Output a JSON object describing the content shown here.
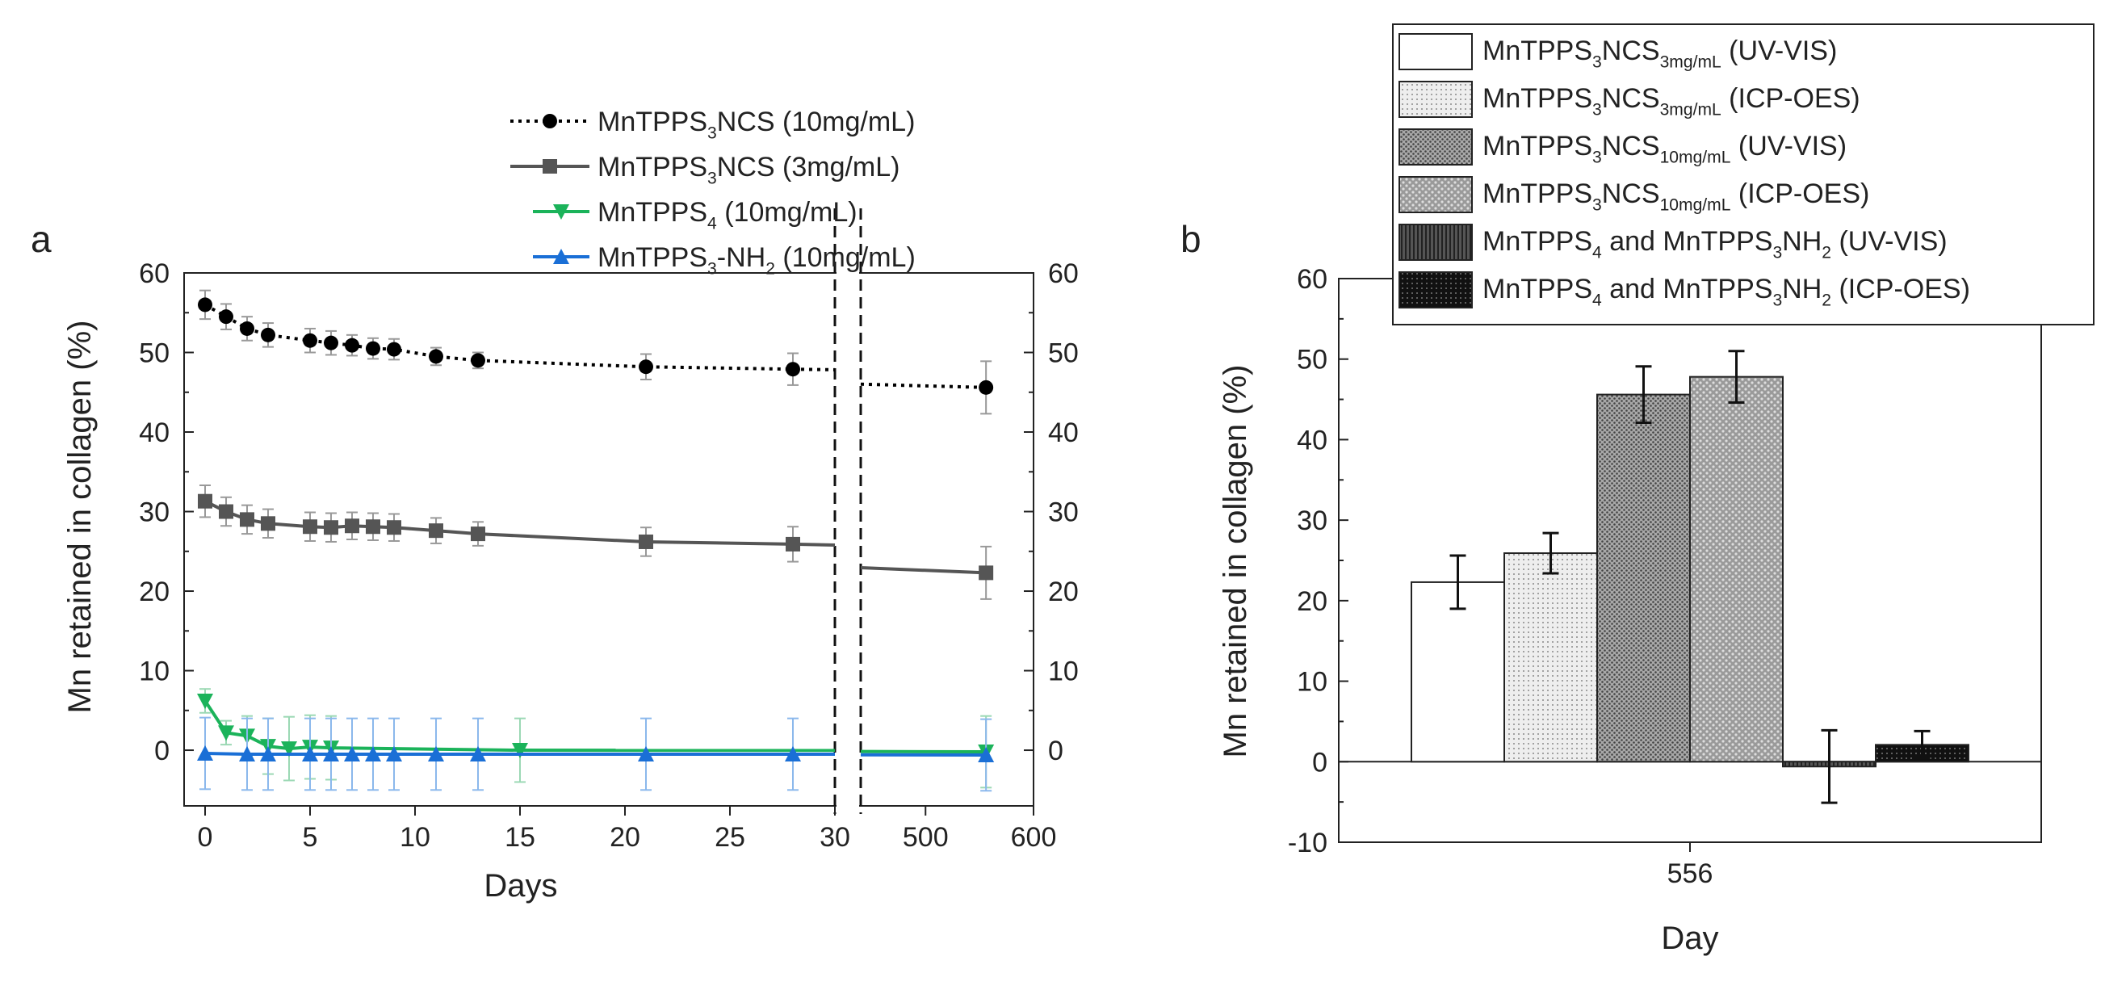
{
  "panels": {
    "a": {
      "label": "a"
    },
    "b": {
      "label": "b"
    }
  },
  "chart_data": [
    {
      "panel": "a",
      "type": "line",
      "xlabel": "Days",
      "ylabel": "Mn retained in collagen (%)",
      "ylim": [
        -7,
        60
      ],
      "y_ticks": [
        0,
        10,
        20,
        30,
        40,
        50,
        60
      ],
      "x_segments": [
        {
          "range": [
            -1,
            30
          ],
          "ticks": [
            0,
            5,
            10,
            15,
            20,
            25,
            30
          ]
        },
        {
          "range": [
            440,
            600
          ],
          "ticks": [
            500,
            600
          ]
        }
      ],
      "axis_break": "dashed vertical lines",
      "secondary_y_axis": true,
      "legend_placement": "top-right",
      "series": [
        {
          "name": "MnTPPS3NCS (10mg/mL)",
          "legend_parts": [
            [
              "MnTPPS",
              "n"
            ],
            [
              "3",
              "sub"
            ],
            [
              "NCS (10mg/mL)",
              "n"
            ]
          ],
          "color": "#000000",
          "line_style": "dotted",
          "marker": "circle",
          "x": [
            0,
            1,
            2,
            3,
            5,
            6,
            7,
            8,
            9,
            11,
            13,
            21,
            28,
            556
          ],
          "y": [
            56,
            54.5,
            53,
            52.2,
            51.5,
            51.2,
            50.9,
            50.5,
            50.4,
            49.5,
            49,
            48.2,
            47.9,
            45.6
          ],
          "err": [
            1.8,
            1.6,
            1.5,
            1.5,
            1.5,
            1.5,
            1.3,
            1.3,
            1.3,
            1.1,
            1.0,
            1.6,
            2.0,
            3.3
          ]
        },
        {
          "name": "MnTPPS3NCS (3mg/mL)",
          "legend_parts": [
            [
              "MnTPPS",
              "n"
            ],
            [
              "3",
              "sub"
            ],
            [
              "NCS (3mg/mL)",
              "n"
            ]
          ],
          "color": "#555555",
          "line_style": "solid",
          "marker": "square",
          "x": [
            0,
            1,
            2,
            3,
            5,
            6,
            7,
            8,
            9,
            11,
            13,
            21,
            28,
            556
          ],
          "y": [
            31.3,
            30,
            29,
            28.5,
            28.1,
            28,
            28.2,
            28.1,
            28,
            27.6,
            27.2,
            26.2,
            25.9,
            22.3
          ],
          "err": [
            2.0,
            1.8,
            1.8,
            1.8,
            1.8,
            1.8,
            1.7,
            1.7,
            1.7,
            1.6,
            1.5,
            1.8,
            2.2,
            3.3
          ]
        },
        {
          "name": "MnTPPS4 (10mg/mL)",
          "legend_parts": [
            [
              "MnTPPS",
              "n"
            ],
            [
              "4",
              "sub"
            ],
            [
              " (10mg/mL)",
              "n"
            ]
          ],
          "color": "#1bb35a",
          "line_style": "solid",
          "marker": "triangle-down",
          "x": [
            0,
            1,
            2,
            3,
            4,
            5,
            6,
            15,
            556
          ],
          "y": [
            6.2,
            2.2,
            1.8,
            0.5,
            0.2,
            0.4,
            0.3,
            0,
            -0.2
          ],
          "err": [
            1.5,
            1.5,
            2.5,
            3.5,
            4,
            4,
            4,
            4,
            4.5
          ]
        },
        {
          "name": "MnTPPS3-NH2 (10mg/mL)",
          "legend_parts": [
            [
              "MnTPPS",
              "n"
            ],
            [
              "3",
              "sub"
            ],
            [
              "-NH",
              "n"
            ],
            [
              "2",
              "sub"
            ],
            [
              " (10mg/mL)",
              "n"
            ]
          ],
          "color": "#1a6fd6",
          "line_style": "solid",
          "marker": "triangle-up",
          "x": [
            0,
            2,
            3,
            5,
            6,
            7,
            8,
            9,
            11,
            13,
            21,
            28,
            556
          ],
          "y": [
            -0.4,
            -0.5,
            -0.5,
            -0.5,
            -0.5,
            -0.5,
            -0.5,
            -0.5,
            -0.5,
            -0.5,
            -0.5,
            -0.5,
            -0.6
          ],
          "err": [
            4.5,
            4.5,
            4.5,
            4.5,
            4.5,
            4.5,
            4.5,
            4.5,
            4.5,
            4.5,
            4.5,
            4.5,
            4.5
          ]
        }
      ]
    },
    {
      "panel": "b",
      "type": "bar",
      "xlabel": "Day",
      "ylabel": "Mn retained in collagen (%)",
      "categories": [
        "556"
      ],
      "ylim": [
        -10,
        60
      ],
      "y_ticks": [
        -10,
        0,
        10,
        20,
        30,
        40,
        50,
        60
      ],
      "legend_placement": "top-right",
      "series": [
        {
          "name": "MnTPPS3NCS3mg/mL (UV-VIS)",
          "legend_parts": [
            [
              "MnTPPS",
              "n"
            ],
            [
              "3",
              "sub"
            ],
            [
              "NCS",
              "n"
            ],
            [
              "3mg/mL",
              "sub"
            ],
            [
              " (UV-VIS)",
              "n"
            ]
          ],
          "values": [
            22.3
          ],
          "err": [
            3.3
          ],
          "fill": "#ffffff",
          "pattern": "none"
        },
        {
          "name": "MnTPPS3NCS3mg/mL (ICP-OES)",
          "legend_parts": [
            [
              "MnTPPS",
              "n"
            ],
            [
              "3",
              "sub"
            ],
            [
              "NCS",
              "n"
            ],
            [
              "3mg/mL",
              "sub"
            ],
            [
              " (ICP-OES)",
              "n"
            ]
          ],
          "values": [
            25.9
          ],
          "err": [
            2.5
          ],
          "fill": "#e6e6e6",
          "pattern": "fine-dots"
        },
        {
          "name": "MnTPPS3NCS10mg/mL (UV-VIS)",
          "legend_parts": [
            [
              "MnTPPS",
              "n"
            ],
            [
              "3",
              "sub"
            ],
            [
              "NCS",
              "n"
            ],
            [
              "10mg/mL",
              "sub"
            ],
            [
              " (UV-VIS)",
              "n"
            ]
          ],
          "values": [
            45.6
          ],
          "err": [
            3.5
          ],
          "fill": "#9a9a9a",
          "pattern": "dense-dots"
        },
        {
          "name": "MnTPPS3NCS10mg/mL (ICP-OES)",
          "legend_parts": [
            [
              "MnTPPS",
              "n"
            ],
            [
              "3",
              "sub"
            ],
            [
              "NCS",
              "n"
            ],
            [
              "10mg/mL",
              "sub"
            ],
            [
              " (ICP-OES)",
              "n"
            ]
          ],
          "values": [
            47.8
          ],
          "err": [
            3.2
          ],
          "fill": "#8a8a8a",
          "pattern": "dots"
        },
        {
          "name": "MnTPPS4 and MnTPPS3NH2 (UV-VIS)",
          "legend_parts": [
            [
              "MnTPPS",
              "n"
            ],
            [
              "4",
              "sub"
            ],
            [
              " and MnTPPS",
              "n"
            ],
            [
              "3",
              "sub"
            ],
            [
              "NH",
              "n"
            ],
            [
              "2",
              "sub"
            ],
            [
              " (UV-VIS)",
              "n"
            ]
          ],
          "values": [
            -0.6
          ],
          "err": [
            4.5
          ],
          "fill": "#3a3a3a",
          "pattern": "vertical-lines"
        },
        {
          "name": "MnTPPS4 and MnTPPS3NH2 (ICP-OES)",
          "legend_parts": [
            [
              "MnTPPS",
              "n"
            ],
            [
              "4",
              "sub"
            ],
            [
              " and MnTPPS",
              "n"
            ],
            [
              "3",
              "sub"
            ],
            [
              "NH",
              "n"
            ],
            [
              "2",
              "sub"
            ],
            [
              " (ICP-OES)",
              "n"
            ]
          ],
          "values": [
            2.1
          ],
          "err": [
            1.7
          ],
          "fill": "#111111",
          "pattern": "dark-dots"
        }
      ]
    }
  ]
}
